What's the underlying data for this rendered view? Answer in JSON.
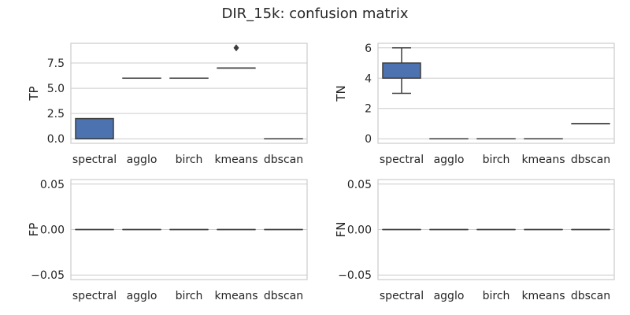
{
  "figure": {
    "title": "DIR_15k: confusion matrix"
  },
  "chart_data": [
    {
      "type": "box",
      "ylabel": "TP",
      "categories": [
        "spectral",
        "agglo",
        "birch",
        "kmeans",
        "dbscan"
      ],
      "yticks": [
        "0.0",
        "2.5",
        "5.0",
        "7.5"
      ],
      "ytick_values": [
        0,
        2.5,
        5,
        7.5
      ],
      "ylim": [
        -0.45,
        9.45
      ],
      "grid": "horizontal",
      "boxes": [
        {
          "category": "spectral",
          "q1": 0,
          "median": 0,
          "q3": 2,
          "whisker_low": 0,
          "whisker_high": 2,
          "outliers": []
        },
        {
          "category": "agglo",
          "q1": 6,
          "median": 6,
          "q3": 6,
          "whisker_low": 6,
          "whisker_high": 6,
          "outliers": []
        },
        {
          "category": "birch",
          "q1": 6,
          "median": 6,
          "q3": 6,
          "whisker_low": 6,
          "whisker_high": 6,
          "outliers": []
        },
        {
          "category": "kmeans",
          "q1": 7,
          "median": 7,
          "q3": 7,
          "whisker_low": 7,
          "whisker_high": 7,
          "outliers": [
            9
          ]
        },
        {
          "category": "dbscan",
          "q1": 0,
          "median": 0,
          "q3": 0,
          "whisker_low": 0,
          "whisker_high": 0,
          "outliers": []
        }
      ]
    },
    {
      "type": "box",
      "ylabel": "TN",
      "categories": [
        "spectral",
        "agglo",
        "birch",
        "kmeans",
        "dbscan"
      ],
      "yticks": [
        "0",
        "2",
        "4",
        "6"
      ],
      "ytick_values": [
        0,
        2,
        4,
        6
      ],
      "ylim": [
        -0.3,
        6.3
      ],
      "grid": "horizontal",
      "boxes": [
        {
          "category": "spectral",
          "q1": 4,
          "median": 4,
          "q3": 5,
          "whisker_low": 3,
          "whisker_high": 6,
          "outliers": []
        },
        {
          "category": "agglo",
          "q1": 0,
          "median": 0,
          "q3": 0,
          "whisker_low": 0,
          "whisker_high": 0,
          "outliers": []
        },
        {
          "category": "birch",
          "q1": 0,
          "median": 0,
          "q3": 0,
          "whisker_low": 0,
          "whisker_high": 0,
          "outliers": []
        },
        {
          "category": "kmeans",
          "q1": 0,
          "median": 0,
          "q3": 0,
          "whisker_low": 0,
          "whisker_high": 0,
          "outliers": []
        },
        {
          "category": "dbscan",
          "q1": 1,
          "median": 1,
          "q3": 1,
          "whisker_low": 1,
          "whisker_high": 1,
          "outliers": []
        }
      ]
    },
    {
      "type": "box",
      "ylabel": "FP",
      "categories": [
        "spectral",
        "agglo",
        "birch",
        "kmeans",
        "dbscan"
      ],
      "yticks": [
        "−0.05",
        "0.00",
        "0.05"
      ],
      "ytick_values": [
        -0.05,
        0,
        0.05
      ],
      "ylim": [
        -0.055,
        0.055
      ],
      "grid": "horizontal",
      "boxes": [
        {
          "category": "spectral",
          "q1": 0,
          "median": 0,
          "q3": 0,
          "whisker_low": 0,
          "whisker_high": 0,
          "outliers": []
        },
        {
          "category": "agglo",
          "q1": 0,
          "median": 0,
          "q3": 0,
          "whisker_low": 0,
          "whisker_high": 0,
          "outliers": []
        },
        {
          "category": "birch",
          "q1": 0,
          "median": 0,
          "q3": 0,
          "whisker_low": 0,
          "whisker_high": 0,
          "outliers": []
        },
        {
          "category": "kmeans",
          "q1": 0,
          "median": 0,
          "q3": 0,
          "whisker_low": 0,
          "whisker_high": 0,
          "outliers": []
        },
        {
          "category": "dbscan",
          "q1": 0,
          "median": 0,
          "q3": 0,
          "whisker_low": 0,
          "whisker_high": 0,
          "outliers": []
        }
      ]
    },
    {
      "type": "box",
      "ylabel": "FN",
      "categories": [
        "spectral",
        "agglo",
        "birch",
        "kmeans",
        "dbscan"
      ],
      "yticks": [
        "−0.05",
        "0.00",
        "0.05"
      ],
      "ytick_values": [
        -0.05,
        0,
        0.05
      ],
      "ylim": [
        -0.055,
        0.055
      ],
      "grid": "horizontal",
      "boxes": [
        {
          "category": "spectral",
          "q1": 0,
          "median": 0,
          "q3": 0,
          "whisker_low": 0,
          "whisker_high": 0,
          "outliers": []
        },
        {
          "category": "agglo",
          "q1": 0,
          "median": 0,
          "q3": 0,
          "whisker_low": 0,
          "whisker_high": 0,
          "outliers": []
        },
        {
          "category": "birch",
          "q1": 0,
          "median": 0,
          "q3": 0,
          "whisker_low": 0,
          "whisker_high": 0,
          "outliers": []
        },
        {
          "category": "kmeans",
          "q1": 0,
          "median": 0,
          "q3": 0,
          "whisker_low": 0,
          "whisker_high": 0,
          "outliers": []
        },
        {
          "category": "dbscan",
          "q1": 0,
          "median": 0,
          "q3": 0,
          "whisker_low": 0,
          "whisker_high": 0,
          "outliers": []
        }
      ]
    }
  ],
  "colors": {
    "box_fill": "#4c72b0",
    "box_line": "#3d3d3d",
    "grid": "#cccccc",
    "frame": "#cccccc",
    "text": "#262626"
  }
}
